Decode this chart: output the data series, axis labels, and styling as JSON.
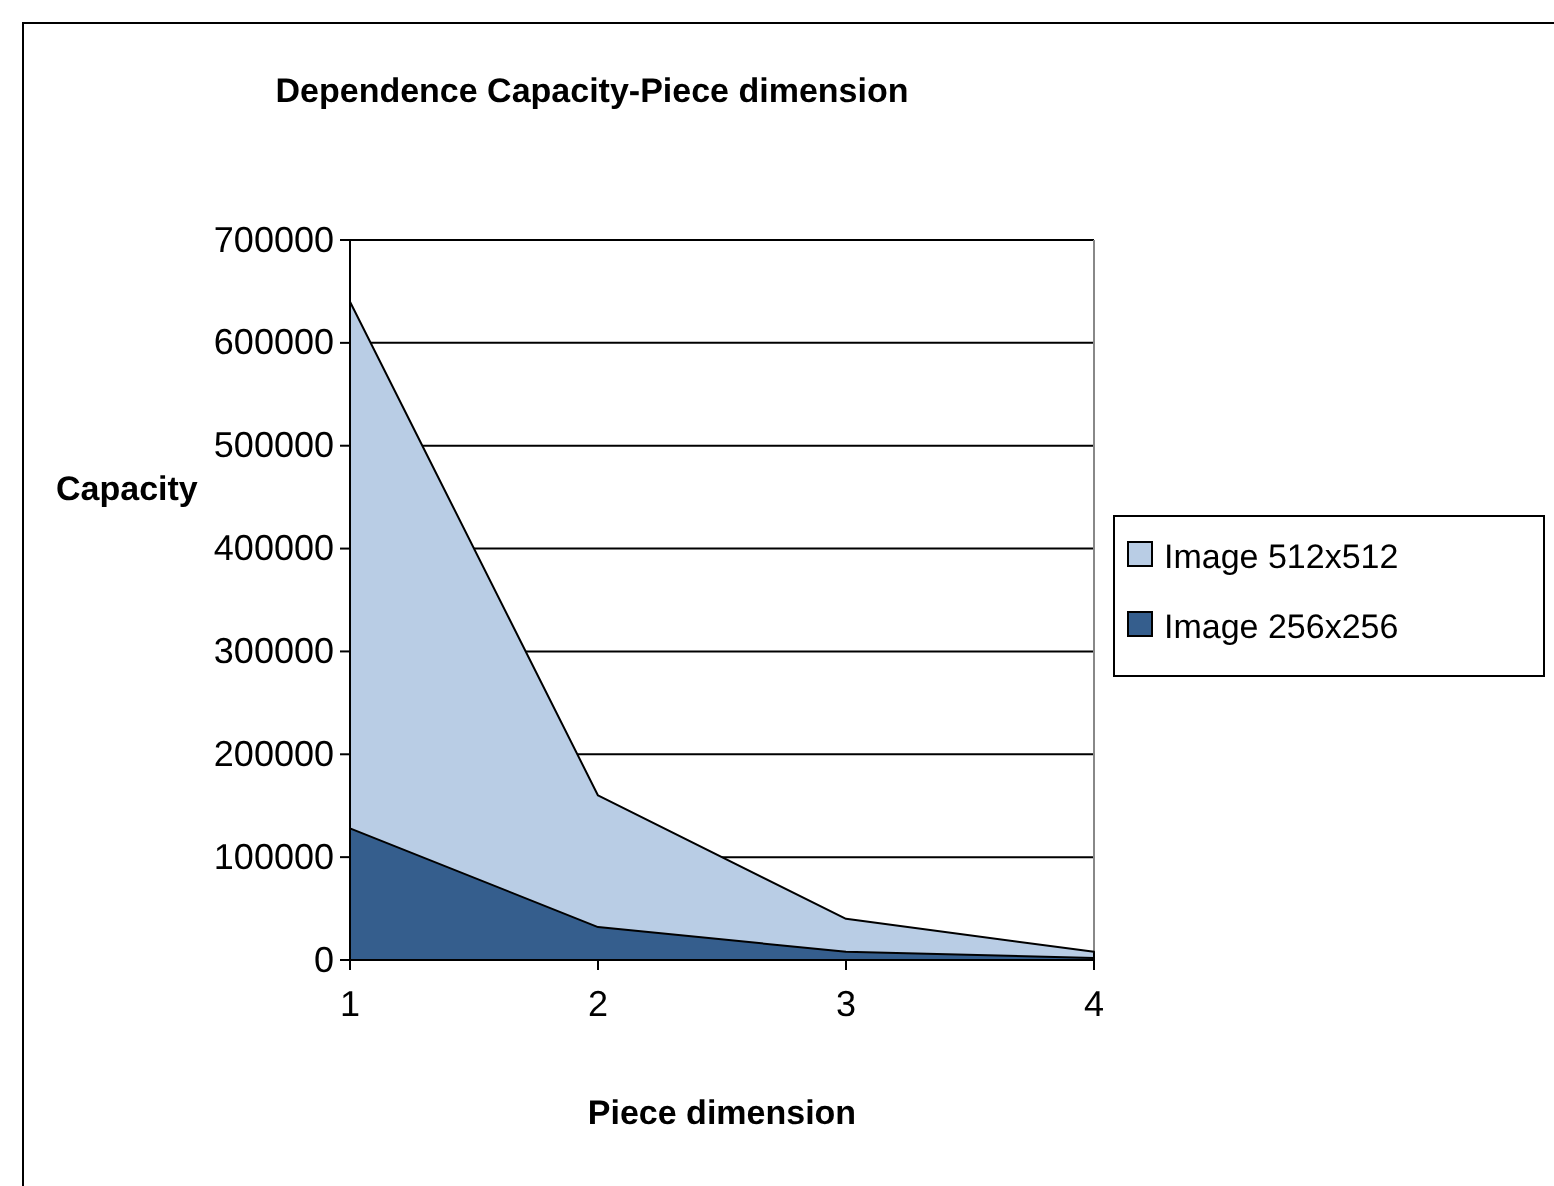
{
  "chart_data": {
    "type": "area",
    "title": "Dependence Capacity-Piece dimension",
    "xlabel": "Piece dimension",
    "ylabel": "Capacity",
    "x": [
      1,
      2,
      3,
      4
    ],
    "series": [
      {
        "name": "Image 512x512",
        "color": "#b9cde5",
        "values": [
          640000,
          160000,
          40000,
          8000
        ]
      },
      {
        "name": "Image 256x256",
        "color": "#355e8d",
        "values": [
          128000,
          32000,
          8000,
          2000
        ]
      }
    ],
    "xlim": [
      1,
      4
    ],
    "xticks": [
      1,
      2,
      3,
      4
    ],
    "ylim": [
      0,
      700000
    ],
    "yticks": [
      0,
      100000,
      200000,
      300000,
      400000,
      500000,
      600000,
      700000
    ],
    "grid": "y",
    "legend": "right"
  }
}
